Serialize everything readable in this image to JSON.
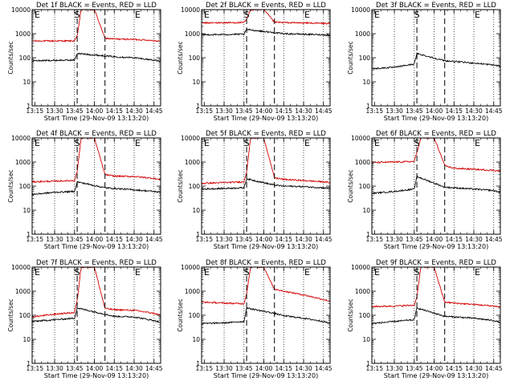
{
  "figure": {
    "ylabel": "Counts/sec",
    "xlabel": "Start Time (29-Nov-09 13:13:20)",
    "colors": {
      "events": "#000000",
      "lld": "#d40000",
      "axes": "#000000"
    }
  },
  "chart_data": [
    {
      "type": "line",
      "title": "Det 1f BLACK = Events, RED = LLD",
      "xlabel": "Start Time (29-Nov-09 13:13:20)",
      "ylabel": "Counts/sec",
      "yscale": "log",
      "xlim": [
        "13:13",
        "14:50"
      ],
      "ylim": [
        1,
        10000
      ],
      "x_ticks": [
        "13:15",
        "13:30",
        "13:45",
        "14:00",
        "14:15",
        "14:30",
        "14:45"
      ],
      "y_ticks": [
        "1",
        "10",
        "100",
        "1000",
        "10000"
      ],
      "markers": [
        {
          "label": "S",
          "time": "13:47",
          "style": "dashed"
        },
        {
          "label": "",
          "time": "14:08",
          "style": "dashed"
        }
      ],
      "edge_labels": [
        "E",
        "E"
      ],
      "grid_lines": [
        "13:30",
        "13:45",
        "14:00",
        "14:15",
        "14:30",
        "14:45"
      ],
      "series": [
        {
          "name": "LLD",
          "color": "red",
          "x": [
            "13:13",
            "13:45",
            "13:47",
            "13:50",
            "14:00",
            "14:08",
            "14:15",
            "14:30",
            "14:45",
            "14:50"
          ],
          "y": [
            500,
            500,
            800,
            10000,
            10000,
            650,
            600,
            580,
            520,
            480
          ]
        },
        {
          "name": "Events",
          "color": "black",
          "x": [
            "13:13",
            "13:45",
            "13:47",
            "14:08",
            "14:15",
            "14:30",
            "14:45",
            "14:50"
          ],
          "y": [
            75,
            80,
            150,
            120,
            110,
            100,
            80,
            70
          ]
        }
      ]
    },
    {
      "type": "line",
      "title": "Det 2f BLACK = Events, RED = LLD",
      "xlabel": "Start Time (29-Nov-09 13:13:20)",
      "ylabel": "Counts/sec",
      "yscale": "log",
      "xlim": [
        "13:13",
        "14:50"
      ],
      "ylim": [
        1,
        10000
      ],
      "x_ticks": [
        "13:15",
        "13:30",
        "13:45",
        "14:00",
        "14:15",
        "14:30",
        "14:45"
      ],
      "y_ticks": [
        "1",
        "10",
        "100",
        "1000",
        "10000"
      ],
      "markers": [
        {
          "label": "S",
          "time": "13:47",
          "style": "dashed"
        },
        {
          "label": "",
          "time": "14:08",
          "style": "dashed"
        }
      ],
      "edge_labels": [
        "E",
        "E"
      ],
      "grid_lines": [
        "13:30",
        "13:45",
        "14:00",
        "14:15",
        "14:30",
        "14:45"
      ],
      "series": [
        {
          "name": "LLD",
          "color": "red",
          "x": [
            "13:13",
            "13:45",
            "13:47",
            "13:50",
            "14:00",
            "14:08",
            "14:15",
            "14:30",
            "14:45",
            "14:50"
          ],
          "y": [
            2800,
            2900,
            4000,
            10000,
            10000,
            3000,
            2900,
            2800,
            2700,
            2600
          ]
        },
        {
          "name": "Events",
          "color": "black",
          "x": [
            "13:13",
            "13:45",
            "13:47",
            "14:08",
            "14:15",
            "14:30",
            "14:45",
            "14:50"
          ],
          "y": [
            900,
            950,
            1500,
            1100,
            1000,
            950,
            900,
            850
          ]
        }
      ]
    },
    {
      "type": "line",
      "title": "Det 3f BLACK = Events, RED = LLD",
      "xlabel": "Start Time (29-Nov-09 13:13:20)",
      "ylabel": "Counts/sec",
      "yscale": "log",
      "xlim": [
        "13:13",
        "14:50"
      ],
      "ylim": [
        1,
        10000
      ],
      "x_ticks": [
        "13:15",
        "13:30",
        "13:45",
        "14:00",
        "14:15",
        "14:30",
        "14:45"
      ],
      "y_ticks": [
        "1",
        "10",
        "100",
        "1000",
        "10000"
      ],
      "markers": [
        {
          "label": "S",
          "time": "13:47",
          "style": "dashed"
        },
        {
          "label": "",
          "time": "14:08",
          "style": "dashed"
        }
      ],
      "edge_labels": [
        "E",
        "E"
      ],
      "grid_lines": [
        "13:30",
        "13:45",
        "14:00",
        "14:15",
        "14:30",
        "14:45"
      ],
      "series": [
        {
          "name": "Events",
          "color": "black",
          "x": [
            "13:13",
            "13:30",
            "13:45",
            "13:47",
            "14:08",
            "14:15",
            "14:30",
            "14:45",
            "14:50"
          ],
          "y": [
            35,
            40,
            55,
            150,
            75,
            70,
            60,
            50,
            45
          ]
        }
      ]
    },
    {
      "type": "line",
      "title": "Det 4f BLACK = Events, RED = LLD",
      "xlabel": "Start Time (29-Nov-09 13:13:20)",
      "ylabel": "Counts/sec",
      "yscale": "log",
      "xlim": [
        "13:13",
        "14:50"
      ],
      "ylim": [
        1,
        10000
      ],
      "x_ticks": [
        "13:15",
        "13:30",
        "13:45",
        "14:00",
        "14:15",
        "14:30",
        "14:45"
      ],
      "y_ticks": [
        "1",
        "10",
        "100",
        "1000",
        "10000"
      ],
      "markers": [
        {
          "label": "S",
          "time": "13:47",
          "style": "dashed"
        },
        {
          "label": "",
          "time": "14:08",
          "style": "dashed"
        }
      ],
      "edge_labels": [
        "E",
        "E"
      ],
      "grid_lines": [
        "13:30",
        "13:45",
        "14:00",
        "14:15",
        "14:30",
        "14:45"
      ],
      "series": [
        {
          "name": "LLD",
          "color": "red",
          "x": [
            "13:13",
            "13:30",
            "13:45",
            "13:47",
            "13:50",
            "14:00",
            "14:08",
            "14:15",
            "14:30",
            "14:45",
            "14:50"
          ],
          "y": [
            150,
            160,
            170,
            400,
            10000,
            10000,
            300,
            260,
            250,
            210,
            180
          ]
        },
        {
          "name": "Events",
          "color": "black",
          "x": [
            "13:13",
            "13:30",
            "13:45",
            "13:47",
            "14:08",
            "14:15",
            "14:30",
            "14:45",
            "14:50"
          ],
          "y": [
            45,
            55,
            60,
            150,
            85,
            80,
            70,
            60,
            55
          ]
        }
      ]
    },
    {
      "type": "line",
      "title": "Det 5f BLACK = Events, RED = LLD",
      "xlabel": "Start Time (29-Nov-09 13:13:20)",
      "ylabel": "Counts/sec",
      "yscale": "log",
      "xlim": [
        "13:13",
        "14:50"
      ],
      "ylim": [
        1,
        10000
      ],
      "x_ticks": [
        "13:15",
        "13:30",
        "13:45",
        "14:00",
        "14:15",
        "14:30",
        "14:45"
      ],
      "y_ticks": [
        "1",
        "10",
        "100",
        "1000",
        "10000"
      ],
      "markers": [
        {
          "label": "S",
          "time": "13:47",
          "style": "dashed"
        },
        {
          "label": "",
          "time": "14:08",
          "style": "dashed"
        }
      ],
      "edge_labels": [
        "E",
        "E"
      ],
      "grid_lines": [
        "13:30",
        "13:45",
        "14:00",
        "14:15",
        "14:30",
        "14:45"
      ],
      "series": [
        {
          "name": "LLD",
          "color": "red",
          "x": [
            "13:13",
            "13:30",
            "13:45",
            "13:47",
            "13:50",
            "14:00",
            "14:08",
            "14:15",
            "14:30",
            "14:45",
            "14:50"
          ],
          "y": [
            130,
            140,
            150,
            400,
            10000,
            10000,
            220,
            190,
            170,
            150,
            140
          ]
        },
        {
          "name": "Events",
          "color": "black",
          "x": [
            "13:13",
            "13:30",
            "13:45",
            "13:47",
            "14:08",
            "14:15",
            "14:30",
            "14:45",
            "14:50"
          ],
          "y": [
            75,
            80,
            85,
            200,
            110,
            100,
            95,
            85,
            80
          ]
        }
      ]
    },
    {
      "type": "line",
      "title": "Det 6f BLACK = Events, RED = LLD",
      "xlabel": "Start Time (29-Nov-09 13:13:20)",
      "ylabel": "Counts/sec",
      "yscale": "log",
      "xlim": [
        "13:13",
        "14:50"
      ],
      "ylim": [
        1,
        10000
      ],
      "x_ticks": [
        "13:15",
        "13:30",
        "13:45",
        "14:00",
        "14:15",
        "14:30",
        "14:45"
      ],
      "y_ticks": [
        "1",
        "10",
        "100",
        "1000",
        "10000"
      ],
      "markers": [
        {
          "label": "S",
          "time": "13:47",
          "style": "dashed"
        },
        {
          "label": "",
          "time": "14:08",
          "style": "dashed"
        }
      ],
      "edge_labels": [
        "E",
        "E"
      ],
      "grid_lines": [
        "13:30",
        "13:45",
        "14:00",
        "14:15",
        "14:30",
        "14:45"
      ],
      "series": [
        {
          "name": "LLD",
          "color": "red",
          "x": [
            "13:13",
            "13:30",
            "13:45",
            "13:47",
            "13:50",
            "14:00",
            "14:05",
            "14:08",
            "14:15",
            "14:30",
            "14:45",
            "14:50"
          ],
          "y": [
            950,
            1000,
            1050,
            2500,
            10000,
            10000,
            2000,
            700,
            550,
            500,
            450,
            420
          ]
        },
        {
          "name": "Events",
          "color": "black",
          "x": [
            "13:13",
            "13:30",
            "13:45",
            "13:47",
            "14:08",
            "14:15",
            "14:30",
            "14:45",
            "14:50"
          ],
          "y": [
            50,
            60,
            75,
            250,
            90,
            85,
            75,
            65,
            55
          ]
        }
      ]
    },
    {
      "type": "line",
      "title": "Det 7f BLACK = Events, RED = LLD",
      "xlabel": "Start Time (29-Nov-09 13:13:20)",
      "ylabel": "Counts/sec",
      "yscale": "log",
      "xlim": [
        "13:13",
        "14:50"
      ],
      "ylim": [
        1,
        10000
      ],
      "x_ticks": [
        "13:15",
        "13:30",
        "13:45",
        "14:00",
        "14:15",
        "14:30",
        "14:45"
      ],
      "y_ticks": [
        "1",
        "10",
        "100",
        "1000",
        "10000"
      ],
      "markers": [
        {
          "label": "S",
          "time": "13:47",
          "style": "dashed"
        },
        {
          "label": "",
          "time": "14:08",
          "style": "dashed"
        }
      ],
      "edge_labels": [
        "E",
        "E"
      ],
      "grid_lines": [
        "13:30",
        "13:45",
        "14:00",
        "14:15",
        "14:30",
        "14:45"
      ],
      "series": [
        {
          "name": "LLD",
          "color": "red",
          "x": [
            "13:13",
            "13:30",
            "13:45",
            "13:47",
            "13:50",
            "14:00",
            "14:08",
            "14:15",
            "14:30",
            "14:45",
            "14:50"
          ],
          "y": [
            85,
            110,
            130,
            400,
            10000,
            10000,
            190,
            170,
            160,
            120,
            100
          ]
        },
        {
          "name": "Events",
          "color": "black",
          "x": [
            "13:13",
            "13:30",
            "13:45",
            "13:47",
            "14:08",
            "14:15",
            "14:30",
            "14:45",
            "14:50"
          ],
          "y": [
            55,
            65,
            75,
            200,
            110,
            90,
            85,
            60,
            50
          ]
        }
      ]
    },
    {
      "type": "line",
      "title": "Det 8f BLACK = Events, RED = LLD",
      "xlabel": "Start Time (29-Nov-09 13:13:20)",
      "ylabel": "Counts/sec",
      "yscale": "log",
      "xlim": [
        "13:13",
        "14:50"
      ],
      "ylim": [
        1,
        10000
      ],
      "x_ticks": [
        "13:15",
        "13:30",
        "13:45",
        "14:00",
        "14:15",
        "14:30",
        "14:45"
      ],
      "y_ticks": [
        "1",
        "10",
        "100",
        "1000",
        "10000"
      ],
      "markers": [
        {
          "label": "S",
          "time": "13:47",
          "style": "dashed"
        },
        {
          "label": "",
          "time": "14:08",
          "style": "dashed"
        }
      ],
      "edge_labels": [
        "E",
        "E"
      ],
      "grid_lines": [
        "13:30",
        "13:45",
        "14:00",
        "14:15",
        "14:30",
        "14:45"
      ],
      "series": [
        {
          "name": "LLD",
          "color": "red",
          "x": [
            "13:13",
            "13:30",
            "13:45",
            "13:47",
            "13:50",
            "14:00",
            "14:08",
            "14:15",
            "14:30",
            "14:45",
            "14:50"
          ],
          "y": [
            350,
            320,
            300,
            800,
            10000,
            10000,
            1200,
            1000,
            700,
            450,
            380
          ]
        },
        {
          "name": "Events",
          "color": "black",
          "x": [
            "13:13",
            "13:30",
            "13:45",
            "13:47",
            "14:08",
            "14:15",
            "14:30",
            "14:45",
            "14:50"
          ],
          "y": [
            45,
            48,
            55,
            200,
            120,
            95,
            75,
            55,
            45
          ]
        }
      ]
    },
    {
      "type": "line",
      "title": "Det 9f BLACK = Events, RED = LLD",
      "xlabel": "Start Time (29-Nov-09 13:13:20)",
      "ylabel": "Counts/sec",
      "yscale": "log",
      "xlim": [
        "13:13",
        "14:50"
      ],
      "ylim": [
        1,
        10000
      ],
      "x_ticks": [
        "13:15",
        "13:30",
        "13:45",
        "14:00",
        "14:15",
        "14:30",
        "14:45"
      ],
      "y_ticks": [
        "1",
        "10",
        "100",
        "1000",
        "10000"
      ],
      "markers": [
        {
          "label": "S",
          "time": "13:47",
          "style": "dashed"
        },
        {
          "label": "",
          "time": "14:08",
          "style": "dashed"
        }
      ],
      "edge_labels": [
        "E",
        "E"
      ],
      "grid_lines": [
        "13:30",
        "13:45",
        "14:00",
        "14:15",
        "14:30",
        "14:45"
      ],
      "series": [
        {
          "name": "LLD",
          "color": "red",
          "x": [
            "13:13",
            "13:30",
            "13:45",
            "13:47",
            "13:50",
            "14:00",
            "14:08",
            "14:15",
            "14:30",
            "14:45",
            "14:50"
          ],
          "y": [
            230,
            240,
            260,
            600,
            10000,
            10000,
            350,
            320,
            280,
            240,
            220
          ]
        },
        {
          "name": "Events",
          "color": "black",
          "x": [
            "13:13",
            "13:30",
            "13:45",
            "13:47",
            "14:08",
            "14:15",
            "14:30",
            "14:45",
            "14:50"
          ],
          "y": [
            45,
            55,
            65,
            200,
            90,
            85,
            75,
            60,
            50
          ]
        }
      ]
    }
  ]
}
